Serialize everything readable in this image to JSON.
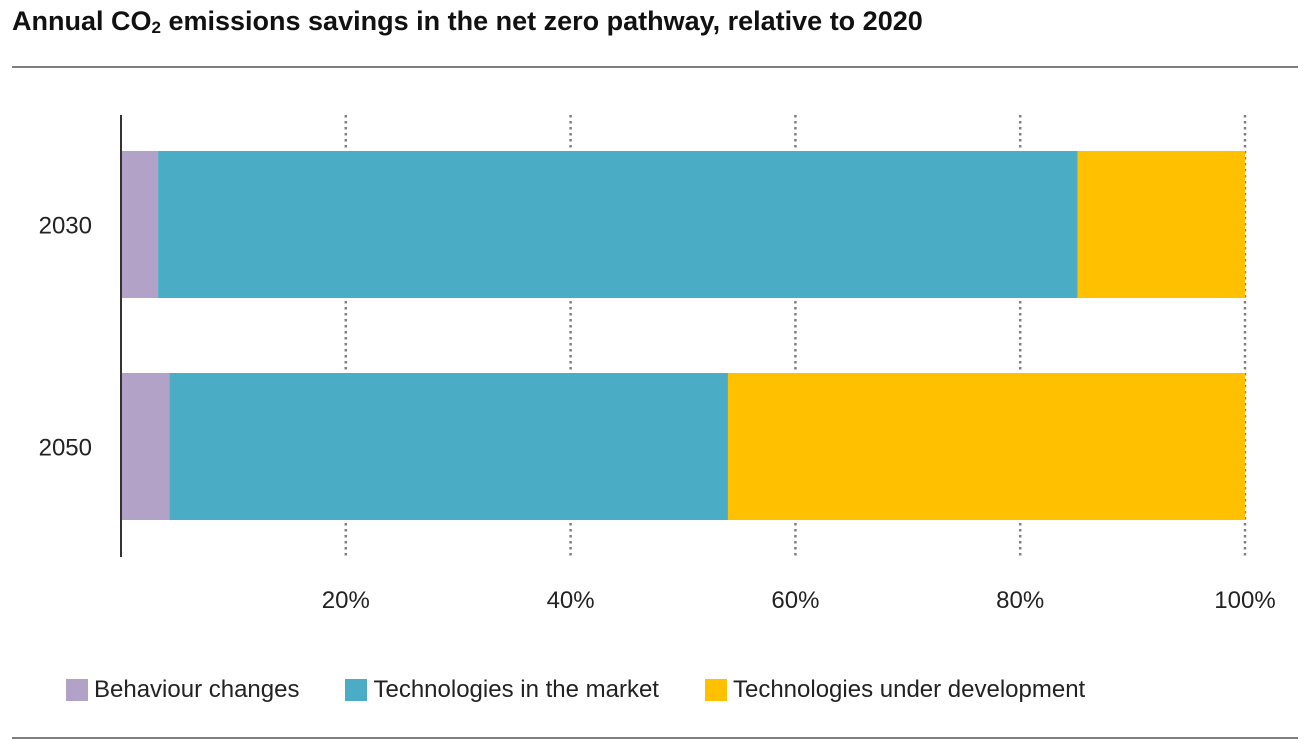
{
  "chart_data": {
    "type": "bar",
    "orientation": "horizontal",
    "stacked": true,
    "title_main": "Annual CO",
    "title_sub": "2",
    "title_rest": " emissions savings in the net zero pathway, relative to 2020",
    "categories": [
      "2030",
      "2050"
    ],
    "series": [
      {
        "name": "Behaviour changes",
        "color": "#b3a2c7",
        "values": [
          3.3,
          4.3
        ]
      },
      {
        "name": "Technologies in the market",
        "color": "#4bacc6",
        "values": [
          81.8,
          49.7
        ]
      },
      {
        "name": "Technologies under development",
        "color": "#ffc000",
        "values": [
          14.9,
          46.0
        ]
      }
    ],
    "xlim": [
      0,
      100
    ],
    "xticks": [
      20,
      40,
      60,
      80,
      100
    ],
    "xtick_labels": [
      "20%",
      "40%",
      "60%",
      "80%",
      "100%"
    ],
    "grid": "vertical dotted",
    "legend_position": "bottom"
  }
}
